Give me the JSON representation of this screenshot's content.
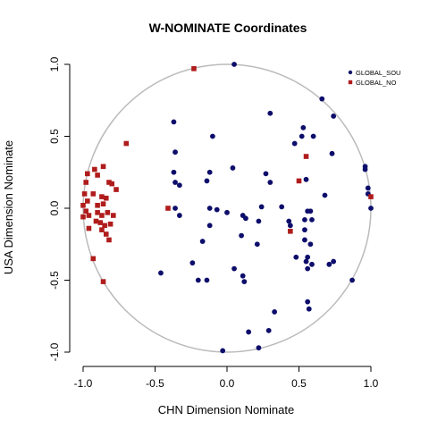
{
  "chart_data": {
    "type": "scatter",
    "title": "W-NOMINATE Coordinates",
    "xlabel": "CHN Dimension Nominate",
    "ylabel": "USA Dimension Nominate",
    "xlim": [
      -1.0,
      1.0
    ],
    "ylim": [
      -1.0,
      1.0
    ],
    "xticks": [
      "-1.0",
      "-0.5",
      "0.0",
      "0.5",
      "1.0"
    ],
    "yticks": [
      "-1.0",
      "-0.5",
      "0.0",
      "0.5",
      "1.0"
    ],
    "grid": false,
    "legend_position": "top-right",
    "unit_circle": true,
    "colors": {
      "circle": "#bbbbbb",
      "global_south": "#0d0d6b",
      "global_north": "#b01c1c"
    },
    "series": [
      {
        "name": "GLOBAL_SOU",
        "marker": "circle",
        "color": "#0d0d6b",
        "points": [
          [
            0.05,
            1.0
          ],
          [
            0.66,
            0.76
          ],
          [
            0.74,
            0.64
          ],
          [
            0.53,
            0.56
          ],
          [
            0.3,
            0.66
          ],
          [
            0.6,
            0.5
          ],
          [
            0.52,
            0.5
          ],
          [
            0.47,
            0.45
          ],
          [
            0.73,
            0.38
          ],
          [
            -0.37,
            0.6
          ],
          [
            -0.36,
            0.39
          ],
          [
            -0.1,
            0.5
          ],
          [
            0.96,
            0.29
          ],
          [
            0.96,
            0.27
          ],
          [
            -0.37,
            0.25
          ],
          [
            0.04,
            0.28
          ],
          [
            -0.12,
            0.25
          ],
          [
            0.27,
            0.24
          ],
          [
            0.3,
            0.18
          ],
          [
            0.55,
            0.2
          ],
          [
            -0.36,
            0.18
          ],
          [
            -0.33,
            0.16
          ],
          [
            -0.14,
            0.19
          ],
          [
            0.98,
            0.14
          ],
          [
            0.98,
            0.1
          ],
          [
            0.68,
            0.09
          ],
          [
            0.24,
            0.01
          ],
          [
            -0.36,
            0.0
          ],
          [
            -0.33,
            -0.05
          ],
          [
            -0.12,
            0.0
          ],
          [
            -0.07,
            -0.01
          ],
          [
            0.38,
            0.01
          ],
          [
            0.0,
            -0.03
          ],
          [
            0.11,
            -0.05
          ],
          [
            0.13,
            -0.07
          ],
          [
            0.22,
            -0.09
          ],
          [
            0.56,
            -0.02
          ],
          [
            0.58,
            -0.02
          ],
          [
            0.54,
            -0.08
          ],
          [
            0.59,
            -0.08
          ],
          [
            1.0,
            0.0
          ],
          [
            0.43,
            -0.09
          ],
          [
            -0.12,
            -0.12
          ],
          [
            0.44,
            -0.12
          ],
          [
            0.54,
            -0.15
          ],
          [
            0.54,
            -0.22
          ],
          [
            0.21,
            -0.25
          ],
          [
            0.58,
            -0.25
          ],
          [
            0.1,
            -0.19
          ],
          [
            -0.17,
            -0.23
          ],
          [
            0.48,
            -0.34
          ],
          [
            0.56,
            -0.34
          ],
          [
            0.55,
            -0.37
          ],
          [
            0.59,
            -0.39
          ],
          [
            0.71,
            -0.39
          ],
          [
            0.74,
            -0.37
          ],
          [
            0.56,
            -0.42
          ],
          [
            -0.24,
            -0.38
          ],
          [
            0.05,
            -0.42
          ],
          [
            0.11,
            -0.47
          ],
          [
            -0.46,
            -0.45
          ],
          [
            -0.2,
            -0.5
          ],
          [
            -0.14,
            -0.5
          ],
          [
            0.12,
            -0.51
          ],
          [
            0.87,
            -0.5
          ],
          [
            0.56,
            -0.65
          ],
          [
            0.57,
            -0.7
          ],
          [
            0.33,
            -0.72
          ],
          [
            0.29,
            -0.85
          ],
          [
            0.15,
            -0.86
          ],
          [
            0.22,
            -0.97
          ],
          [
            -0.03,
            -0.99
          ]
        ]
      },
      {
        "name": "GLOBAL_NO",
        "marker": "square",
        "color": "#b01c1c",
        "points": [
          [
            -0.23,
            0.97
          ],
          [
            -0.7,
            0.45
          ],
          [
            -0.97,
            0.24
          ],
          [
            -0.92,
            0.27
          ],
          [
            -0.86,
            0.29
          ],
          [
            -0.9,
            0.23
          ],
          [
            -0.82,
            0.18
          ],
          [
            -0.98,
            0.18
          ],
          [
            -0.99,
            0.1
          ],
          [
            -0.93,
            0.1
          ],
          [
            -0.87,
            0.08
          ],
          [
            -0.84,
            0.07
          ],
          [
            -0.77,
            0.13
          ],
          [
            -0.8,
            0.17
          ],
          [
            -0.97,
            0.05
          ],
          [
            -1.0,
            0.02
          ],
          [
            -0.9,
            0.02
          ],
          [
            -0.86,
            0.03
          ],
          [
            -0.98,
            -0.02
          ],
          [
            -0.9,
            -0.03
          ],
          [
            -0.87,
            -0.05
          ],
          [
            -0.83,
            -0.03
          ],
          [
            -0.79,
            -0.05
          ],
          [
            -1.0,
            -0.06
          ],
          [
            -0.96,
            -0.05
          ],
          [
            -0.91,
            -0.09
          ],
          [
            -0.88,
            -0.1
          ],
          [
            -0.85,
            -0.12
          ],
          [
            -0.81,
            -0.11
          ],
          [
            -0.96,
            -0.14
          ],
          [
            -0.87,
            -0.15
          ],
          [
            -0.84,
            -0.18
          ],
          [
            -0.82,
            -0.22
          ],
          [
            -0.93,
            -0.35
          ],
          [
            -0.86,
            -0.51
          ],
          [
            -0.41,
            0.0
          ],
          [
            0.55,
            0.36
          ],
          [
            0.5,
            0.19
          ],
          [
            0.44,
            -0.16
          ],
          [
            1.0,
            0.08
          ]
        ]
      }
    ]
  }
}
